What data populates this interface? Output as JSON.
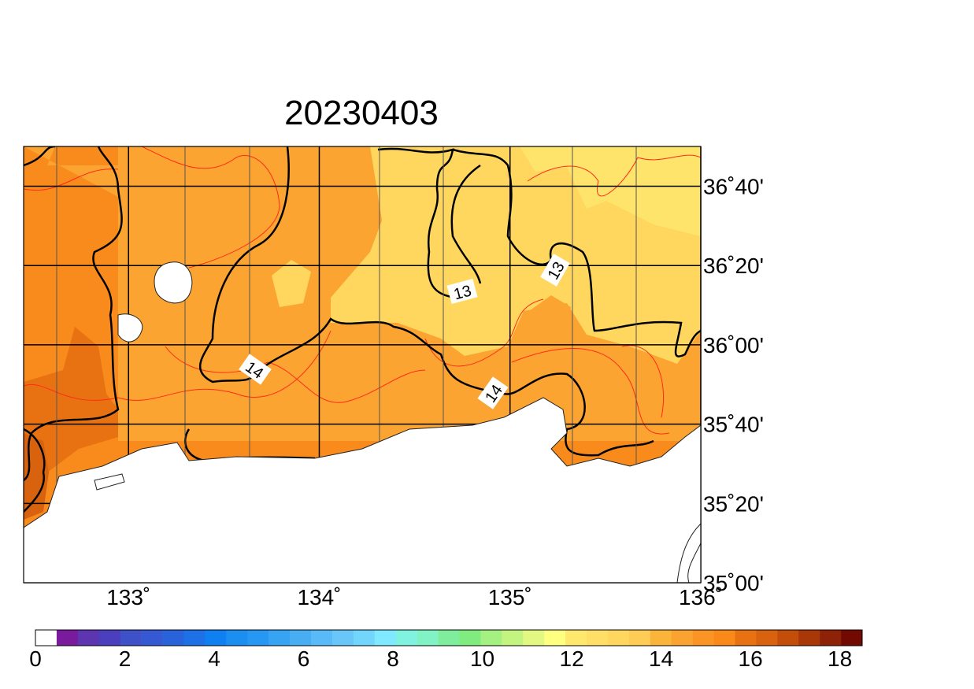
{
  "chart_data": {
    "type": "map",
    "title": "20230403",
    "xlim": [
      132.45,
      136
    ],
    "ylim": [
      35,
      36.834
    ],
    "xticks": [
      {
        "value": 133,
        "label": "133˚"
      },
      {
        "value": 134,
        "label": "134˚"
      },
      {
        "value": 135,
        "label": "135˚"
      },
      {
        "value": 136,
        "label": "136˚"
      }
    ],
    "yticks": [
      {
        "value": 35,
        "label": "35˚00'"
      },
      {
        "value": 35.3333,
        "label": "35˚20'"
      },
      {
        "value": 35.6667,
        "label": "35˚40'"
      },
      {
        "value": 36,
        "label": "36˚00'"
      },
      {
        "value": 36.3333,
        "label": "36˚20'"
      },
      {
        "value": 36.6667,
        "label": "36˚40'"
      }
    ],
    "grid": true,
    "contour_labels": [
      13,
      13,
      14,
      14
    ],
    "colorbar": {
      "lim": [
        0,
        18.5
      ],
      "ticks": [
        0,
        2,
        4,
        6,
        8,
        10,
        12,
        14,
        16,
        18
      ],
      "colors": [
        "#ffffff",
        "#7a1a9c",
        "#5e35b1",
        "#4b3fbd",
        "#3f51c8",
        "#3459d2",
        "#2863dc",
        "#1d70e6",
        "#0f80f2",
        "#1b8ef2",
        "#2698f3",
        "#36a3f3",
        "#47aef4",
        "#58baf6",
        "#68c6f9",
        "#72d6fc",
        "#7fe9ff",
        "#80f2e0",
        "#80f2c4",
        "#7fee9c",
        "#80ec80",
        "#a4f080",
        "#c4f480",
        "#e2f880",
        "#ffff80",
        "#ffe86c",
        "#ffdf66",
        "#ffd75e",
        "#ffcd55",
        "#fbb43a",
        "#faa330",
        "#fa9424",
        "#f98a1a",
        "#e87212",
        "#d9620e",
        "#c24e0a",
        "#a83808",
        "#8e2206",
        "#720a02"
      ]
    }
  }
}
